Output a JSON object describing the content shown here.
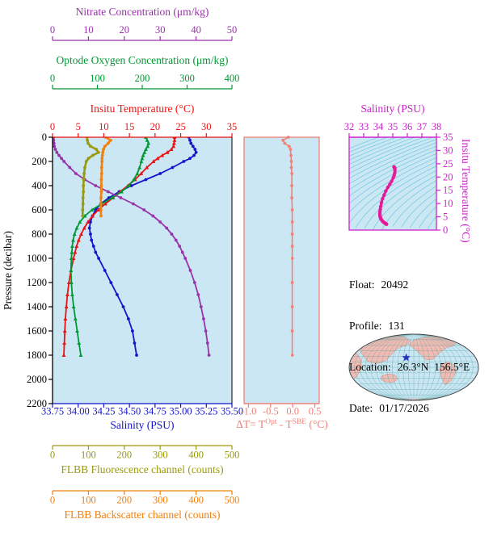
{
  "axes": {
    "nitrate": {
      "label": "Nitrate Concentration (μm/kg)",
      "color": "#9933AA",
      "range": [
        0,
        50
      ],
      "ticks": [
        0,
        10,
        20,
        30,
        40,
        50
      ]
    },
    "oxygen": {
      "label": "Optode Oxygen Concentration (μm/kg)",
      "color": "#009933",
      "range": [
        0,
        400
      ],
      "ticks": [
        0,
        100,
        200,
        300,
        400
      ]
    },
    "temperature": {
      "label": "Insitu Temperature (°C)",
      "color": "#EE1111",
      "range": [
        0,
        35
      ],
      "ticks": [
        0,
        5,
        10,
        15,
        20,
        25,
        30,
        35
      ]
    },
    "pressure": {
      "label": "Pressure (decibar)",
      "color": "#000000",
      "range": [
        0,
        2200
      ],
      "ticks": [
        0,
        200,
        400,
        600,
        800,
        1000,
        1200,
        1400,
        1600,
        1800,
        2000,
        2200
      ]
    },
    "salinity": {
      "label": "Salinity (PSU)",
      "color": "#1414CC",
      "range": [
        33.75,
        35.5
      ],
      "ticks": [
        "33.75",
        "34.00",
        "34.25",
        "34.50",
        "34.75",
        "35.00",
        "35.25",
        "35.50"
      ]
    },
    "fluorescence": {
      "label": "FLBB Fluorescence channel (counts)",
      "color": "#9A9A10",
      "range": [
        0,
        500
      ],
      "ticks": [
        0,
        100,
        200,
        300,
        400,
        500
      ]
    },
    "backscatter": {
      "label": "FLBB Backscatter channel (counts)",
      "color": "#F08010",
      "range": [
        0,
        500
      ],
      "ticks": [
        0,
        100,
        200,
        300,
        400,
        500
      ]
    },
    "delta_t": {
      "label_plain": "ΔT= TOpt - TSBE (°C)",
      "p1": "ΔT= T",
      "p2": "Opt",
      "p3": " - T",
      "p4": "SBE",
      "p5": " (°C)",
      "color": "#F08078",
      "range": [
        -1.1,
        0.6
      ],
      "ticks": [
        "-1.0",
        "-0.5",
        "0.0",
        "0.5"
      ]
    },
    "ts_salinity": {
      "label": "Salinity (PSU)",
      "color": "#CC22CC",
      "range": [
        32,
        38
      ],
      "ticks": [
        32,
        33,
        34,
        35,
        36,
        37,
        38
      ]
    },
    "ts_temperature": {
      "label": "Insitu Temperature (°C)",
      "color": "#CC22CC",
      "range": [
        0,
        35
      ],
      "ticks": [
        0,
        5,
        10,
        15,
        20,
        25,
        30,
        35
      ]
    }
  },
  "info": {
    "float_label": "Float:",
    "float_value": "20492",
    "profile_label": "Profile:",
    "profile_value": "131",
    "location_label": "Location:",
    "location_value": "26.3°N  156.5°E",
    "date_label": "Date:",
    "date_value": "01/17/2026"
  },
  "map": {
    "star_lat": 26.3,
    "star_lon": 156.5,
    "center_lon": 180,
    "star_color": "#2233BB"
  },
  "colors": {
    "panel_bg": "#CBE7F4",
    "contour": "#6CC8DE",
    "map_ocean": "#C9E6F2",
    "map_land": "#F1BBB3",
    "map_grid": "#3D9898",
    "map_outline": "#444444"
  },
  "chart_data": [
    {
      "type": "line",
      "id": "pressure-profiles",
      "ylabel": "Pressure (decibar)",
      "ylim": [
        0,
        2200
      ],
      "series": [
        {
          "name": "Salinity (PSU)",
          "axis": "salinity",
          "color": "#1414CC",
          "marker": "circle",
          "xlim": [
            33.75,
            35.5
          ],
          "pressure": [
            0,
            25,
            50,
            75,
            100,
            125,
            150,
            175,
            200,
            250,
            300,
            350,
            400,
            450,
            500,
            550,
            600,
            650,
            700,
            750,
            800,
            850,
            900,
            950,
            1000,
            1100,
            1200,
            1300,
            1400,
            1500,
            1600,
            1700,
            1800
          ],
          "values": [
            35.08,
            35.09,
            35.1,
            35.12,
            35.14,
            35.15,
            35.13,
            35.09,
            35.03,
            34.92,
            34.8,
            34.66,
            34.52,
            34.4,
            34.3,
            34.22,
            34.17,
            34.14,
            34.12,
            34.11,
            34.12,
            34.13,
            34.15,
            34.17,
            34.2,
            34.26,
            34.32,
            34.38,
            34.44,
            34.49,
            34.53,
            34.55,
            34.57
          ]
        },
        {
          "name": "Insitu Temperature (°C)",
          "axis": "temperature",
          "color": "#EE1111",
          "marker": "triangle",
          "xlim": [
            0,
            35
          ],
          "pressure": [
            0,
            25,
            50,
            75,
            100,
            125,
            150,
            175,
            200,
            250,
            300,
            350,
            400,
            450,
            500,
            550,
            600,
            650,
            700,
            750,
            800,
            850,
            900,
            950,
            1000,
            1100,
            1200,
            1300,
            1400,
            1500,
            1600,
            1700,
            1800
          ],
          "values": [
            23.8,
            23.8,
            23.7,
            23.6,
            23.2,
            22.4,
            21.4,
            20.5,
            19.7,
            18.4,
            17.3,
            16.1,
            14.7,
            13.2,
            11.8,
            10.3,
            8.9,
            7.8,
            6.9,
            6.2,
            5.6,
            5.1,
            4.7,
            4.4,
            4.1,
            3.6,
            3.2,
            2.9,
            2.7,
            2.5,
            2.4,
            2.3,
            2.2
          ]
        },
        {
          "name": "Optode Oxygen Concentration (μm/kg)",
          "axis": "oxygen",
          "color": "#009933",
          "marker": "triangle",
          "xlim": [
            0,
            400
          ],
          "pressure": [
            0,
            25,
            50,
            75,
            100,
            125,
            150,
            175,
            200,
            250,
            300,
            350,
            400,
            450,
            500,
            550,
            600,
            650,
            700,
            750,
            800,
            850,
            900,
            950,
            1000,
            1100,
            1200,
            1300,
            1400,
            1500,
            1600,
            1700,
            1800
          ],
          "values": [
            208,
            211,
            214,
            212,
            208,
            205,
            202,
            200,
            198,
            194,
            189,
            181,
            170,
            154,
            133,
            110,
            88,
            72,
            61,
            54,
            49,
            46,
            44,
            43,
            42,
            41,
            42,
            44,
            47,
            51,
            55,
            59,
            63
          ]
        },
        {
          "name": "Nitrate Concentration (μm/kg)",
          "axis": "nitrate",
          "color": "#9933AA",
          "marker": "circle",
          "xlim": [
            0,
            50
          ],
          "pressure": [
            0,
            25,
            50,
            75,
            100,
            125,
            150,
            175,
            200,
            250,
            300,
            350,
            400,
            450,
            500,
            550,
            600,
            650,
            700,
            750,
            800,
            850,
            900,
            950,
            1000,
            1100,
            1200,
            1300,
            1400,
            1500,
            1600,
            1700,
            1800
          ],
          "values": [
            0.3,
            0.3,
            0.4,
            0.5,
            0.8,
            1.2,
            1.8,
            2.5,
            3.2,
            4.8,
            6.5,
            9.0,
            12.0,
            15.5,
            19.0,
            22.5,
            25.5,
            28.0,
            30.0,
            31.8,
            33.2,
            34.4,
            35.4,
            36.2,
            37.0,
            38.4,
            39.6,
            40.6,
            41.4,
            42.1,
            42.7,
            43.2,
            43.6
          ]
        },
        {
          "name": "FLBB Fluorescence channel (counts)",
          "axis": "fluorescence",
          "color": "#9A9A10",
          "marker": "circle",
          "xlim": [
            0,
            500
          ],
          "pressure": [
            0,
            25,
            50,
            75,
            100,
            125,
            150,
            175,
            200,
            250,
            300,
            350,
            400,
            450,
            500,
            550,
            600,
            650
          ],
          "values": [
            96,
            97,
            99,
            106,
            122,
            128,
            112,
            100,
            94,
            90,
            88,
            87,
            86,
            86,
            85,
            85,
            84,
            84
          ]
        },
        {
          "name": "FLBB Backscatter channel (counts)",
          "axis": "backscatter",
          "color": "#F08010",
          "marker": "circle",
          "xlim": [
            0,
            500
          ],
          "pressure": [
            0,
            25,
            50,
            75,
            100,
            125,
            150,
            175,
            200,
            250,
            300,
            350,
            400,
            450,
            500,
            550,
            600,
            650
          ],
          "values": [
            148,
            162,
            155,
            146,
            142,
            140,
            139,
            138,
            138,
            137,
            137,
            136,
            136,
            136,
            135,
            135,
            135,
            135
          ]
        }
      ]
    },
    {
      "type": "line",
      "id": "delta-t",
      "xlabel": "ΔT= TOpt - TSBE (°C)",
      "xlim": [
        -1.1,
        0.6
      ],
      "ylim": [
        0,
        2200
      ],
      "series": [
        {
          "name": "Optode minus SBE temperature difference",
          "color": "#F08078",
          "marker": "circle",
          "pressure": [
            0,
            25,
            50,
            75,
            100,
            150,
            200,
            250,
            300,
            400,
            500,
            600,
            700,
            800,
            900,
            1000,
            1200,
            1400,
            1600,
            1800
          ],
          "values": [
            -0.1,
            -0.22,
            -0.18,
            -0.08,
            -0.05,
            -0.04,
            -0.03,
            -0.03,
            -0.02,
            -0.02,
            -0.02,
            -0.01,
            -0.01,
            -0.01,
            -0.01,
            -0.01,
            -0.01,
            -0.01,
            -0.01,
            -0.01
          ]
        }
      ]
    },
    {
      "type": "line",
      "id": "ts-diagram",
      "xlabel": "Salinity (PSU)",
      "ylabel": "Insitu Temperature (°C)",
      "xlim": [
        32,
        38
      ],
      "ylim": [
        0,
        35
      ],
      "background": "sigma-theta density contours",
      "series": [
        {
          "name": "T-S curve",
          "color": "#E8189A",
          "marker": "circle",
          "derived_from": [
            "salinity",
            "temperature"
          ]
        }
      ]
    }
  ]
}
